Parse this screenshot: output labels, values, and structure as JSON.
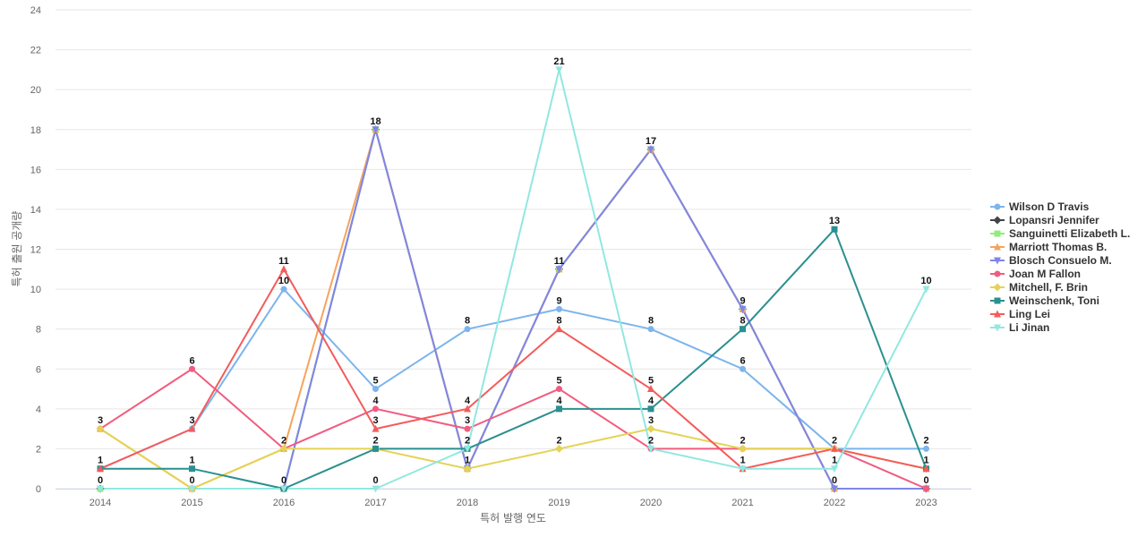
{
  "chart_data": {
    "type": "line",
    "xlabel": "특허 발행 연도",
    "ylabel": "특허 출원 공개량",
    "x": [
      "2014",
      "2015",
      "2016",
      "2017",
      "2018",
      "2019",
      "2020",
      "2021",
      "2022",
      "2023"
    ],
    "ylim": [
      0,
      24
    ],
    "yticks": [
      0,
      2,
      4,
      6,
      8,
      10,
      12,
      14,
      16,
      18,
      20,
      22,
      24
    ],
    "grid": true,
    "legend_position": "right",
    "series": [
      {
        "name": "Wilson D Travis",
        "color": "#7cb5ec",
        "marker": "circle",
        "values": [
          1,
          3,
          10,
          5,
          8,
          9,
          8,
          6,
          2,
          2
        ]
      },
      {
        "name": "Lopansri Jennifer",
        "color": "#434348",
        "marker": "diamond",
        "values": [
          0,
          0,
          0,
          18,
          1,
          11,
          17,
          9,
          0,
          0
        ]
      },
      {
        "name": "Sanguinetti Elizabeth L.",
        "color": "#90ed7d",
        "marker": "square",
        "values": [
          0,
          0,
          0,
          18,
          1,
          11,
          17,
          9,
          0,
          0
        ]
      },
      {
        "name": "Marriott Thomas B.",
        "color": "#f7a35c",
        "marker": "triangle",
        "values": [
          3,
          0,
          2,
          18,
          1,
          11,
          17,
          9,
          0,
          0
        ]
      },
      {
        "name": "Blosch Consuelo M.",
        "color": "#8085e9",
        "marker": "triangle-down",
        "values": [
          0,
          0,
          0,
          18,
          1,
          11,
          17,
          9,
          0,
          0
        ]
      },
      {
        "name": "Joan M Fallon",
        "color": "#f15c80",
        "marker": "circle",
        "values": [
          3,
          6,
          2,
          4,
          3,
          5,
          2,
          2,
          2,
          0
        ]
      },
      {
        "name": "Mitchell, F. Brin",
        "color": "#e4d354",
        "marker": "diamond",
        "values": [
          3,
          0,
          2,
          2,
          1,
          2,
          3,
          2,
          2,
          1
        ]
      },
      {
        "name": "Weinschenk, Toni",
        "color": "#2b908f",
        "marker": "square",
        "values": [
          1,
          1,
          0,
          2,
          2,
          4,
          4,
          8,
          13,
          1
        ]
      },
      {
        "name": "Ling Lei",
        "color": "#f45b5b",
        "marker": "triangle",
        "values": [
          1,
          3,
          11,
          3,
          4,
          8,
          5,
          1,
          2,
          1
        ]
      },
      {
        "name": "Li Jinan",
        "color": "#91e8e1",
        "marker": "triangle-down",
        "values": [
          0,
          0,
          0,
          0,
          2,
          21,
          2,
          1,
          1,
          10
        ]
      }
    ],
    "data_labels": [
      {
        "x": "2014",
        "y": 3,
        "text": "3"
      },
      {
        "x": "2014",
        "y": 1,
        "text": "1"
      },
      {
        "x": "2014",
        "y": 0,
        "text": "0"
      },
      {
        "x": "2015",
        "y": 6,
        "text": "6"
      },
      {
        "x": "2015",
        "y": 3,
        "text": "3"
      },
      {
        "x": "2015",
        "y": 1,
        "text": "1"
      },
      {
        "x": "2015",
        "y": 0,
        "text": "0"
      },
      {
        "x": "2016",
        "y": 11,
        "text": "11"
      },
      {
        "x": "2016",
        "y": 10,
        "text": "10"
      },
      {
        "x": "2016",
        "y": 2,
        "text": "2"
      },
      {
        "x": "2016",
        "y": 0,
        "text": "0"
      },
      {
        "x": "2017",
        "y": 18,
        "text": "18"
      },
      {
        "x": "2017",
        "y": 5,
        "text": "5"
      },
      {
        "x": "2017",
        "y": 4,
        "text": "4"
      },
      {
        "x": "2017",
        "y": 3,
        "text": "3"
      },
      {
        "x": "2017",
        "y": 2,
        "text": "2"
      },
      {
        "x": "2017",
        "y": 0,
        "text": "0"
      },
      {
        "x": "2018",
        "y": 8,
        "text": "8"
      },
      {
        "x": "2018",
        "y": 4,
        "text": "4"
      },
      {
        "x": "2018",
        "y": 3,
        "text": "3"
      },
      {
        "x": "2018",
        "y": 2,
        "text": "2"
      },
      {
        "x": "2018",
        "y": 1,
        "text": "1"
      },
      {
        "x": "2019",
        "y": 21,
        "text": "21"
      },
      {
        "x": "2019",
        "y": 11,
        "text": "11"
      },
      {
        "x": "2019",
        "y": 9,
        "text": "9"
      },
      {
        "x": "2019",
        "y": 8,
        "text": "8"
      },
      {
        "x": "2019",
        "y": 5,
        "text": "5"
      },
      {
        "x": "2019",
        "y": 4,
        "text": "4"
      },
      {
        "x": "2019",
        "y": 2,
        "text": "2"
      },
      {
        "x": "2020",
        "y": 17,
        "text": "17"
      },
      {
        "x": "2020",
        "y": 8,
        "text": "8"
      },
      {
        "x": "2020",
        "y": 5,
        "text": "5"
      },
      {
        "x": "2020",
        "y": 4,
        "text": "4"
      },
      {
        "x": "2020",
        "y": 3,
        "text": "3"
      },
      {
        "x": "2020",
        "y": 2,
        "text": "2"
      },
      {
        "x": "2021",
        "y": 9,
        "text": "9"
      },
      {
        "x": "2021",
        "y": 8,
        "text": "8"
      },
      {
        "x": "2021",
        "y": 6,
        "text": "6"
      },
      {
        "x": "2021",
        "y": 2,
        "text": "2"
      },
      {
        "x": "2021",
        "y": 1,
        "text": "1"
      },
      {
        "x": "2022",
        "y": 13,
        "text": "13"
      },
      {
        "x": "2022",
        "y": 2,
        "text": "2"
      },
      {
        "x": "2022",
        "y": 1,
        "text": "1"
      },
      {
        "x": "2022",
        "y": 0,
        "text": "0"
      },
      {
        "x": "2023",
        "y": 10,
        "text": "10"
      },
      {
        "x": "2023",
        "y": 2,
        "text": "2"
      },
      {
        "x": "2023",
        "y": 1,
        "text": "1"
      },
      {
        "x": "2023",
        "y": 0,
        "text": "0"
      }
    ]
  }
}
